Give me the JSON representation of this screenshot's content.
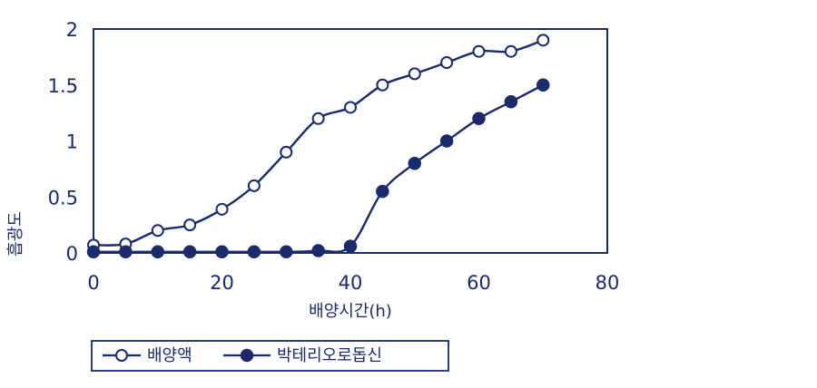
{
  "chart_data": {
    "type": "line",
    "title": "",
    "xlabel": "배양시간(h)",
    "ylabel": "흡광도",
    "xlim": [
      0,
      80
    ],
    "ylim": [
      0,
      2
    ],
    "xticks": [
      0,
      20,
      40,
      60,
      80
    ],
    "yticks": [
      0,
      0.5,
      1,
      1.5,
      2
    ],
    "xtick_labels": [
      "0",
      "20",
      "40",
      "60",
      "80"
    ],
    "ytick_labels": [
      "0",
      "0.5",
      "1",
      "1.5",
      "2"
    ],
    "grid": false,
    "legend_position": "bottom-left",
    "colors": {
      "line": "#1b2a6b",
      "text": "#1b2a6b",
      "frame": "#1b2a6b"
    },
    "series": [
      {
        "name": "배양액",
        "marker": "open-circle",
        "x": [
          0,
          5,
          10,
          15,
          20,
          25,
          30,
          35,
          40,
          45,
          50,
          55,
          60,
          65,
          70
        ],
        "y": [
          0.07,
          0.08,
          0.2,
          0.25,
          0.39,
          0.6,
          0.9,
          1.2,
          1.3,
          1.5,
          1.6,
          1.7,
          1.8,
          1.8,
          1.9
        ]
      },
      {
        "name": "박테리오로돕신",
        "marker": "filled-circle",
        "x": [
          0,
          5,
          10,
          15,
          20,
          25,
          30,
          35,
          40,
          45,
          50,
          55,
          60,
          65,
          70
        ],
        "y": [
          0.01,
          0.01,
          0.01,
          0.01,
          0.01,
          0.01,
          0.01,
          0.02,
          0.06,
          0.55,
          0.8,
          1.0,
          1.2,
          1.35,
          1.5
        ]
      }
    ]
  }
}
